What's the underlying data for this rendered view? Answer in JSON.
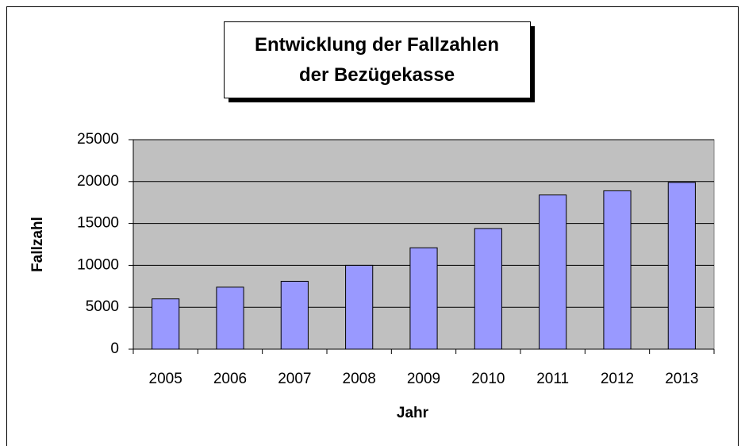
{
  "chart_data": {
    "type": "bar",
    "title": "Entwicklung der Fallzahlen der Bezügekasse",
    "x_label": "Jahr",
    "y_label": "Fallzahl",
    "categories": [
      "2005",
      "2006",
      "2007",
      "2008",
      "2009",
      "2010",
      "2011",
      "2012",
      "2013"
    ],
    "values": [
      6000,
      7400,
      8100,
      10000,
      12100,
      14400,
      18400,
      18900,
      19900
    ],
    "color": "#9999ff",
    "ylim": [
      0,
      25000
    ],
    "yticks": [
      0,
      5000,
      10000,
      15000,
      20000,
      25000
    ],
    "grid": true
  }
}
